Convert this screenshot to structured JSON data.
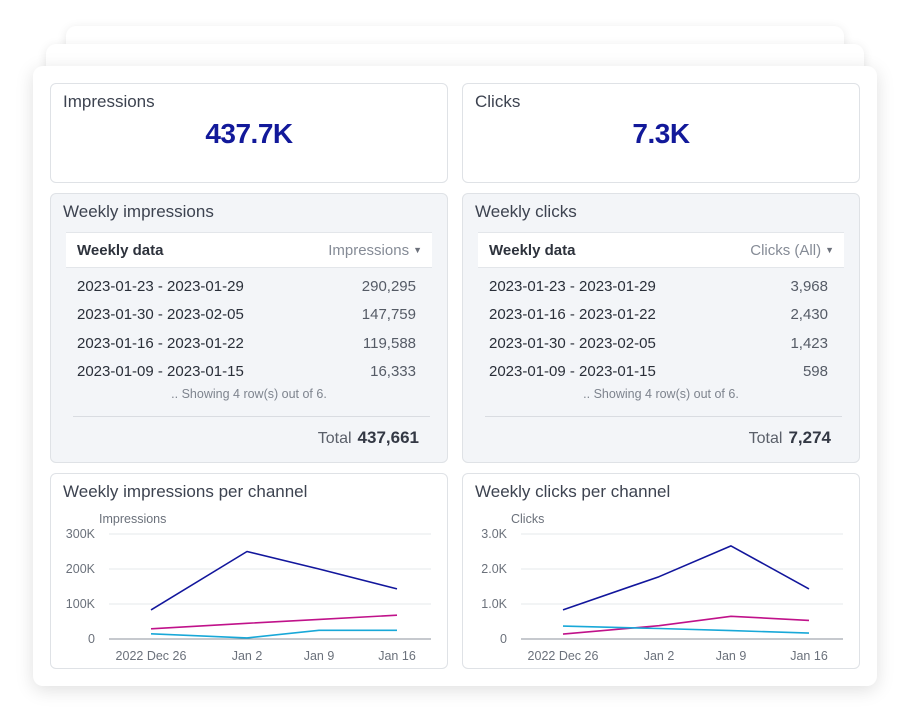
{
  "kpis": {
    "impressions": {
      "label": "Impressions",
      "value": "437.7K"
    },
    "clicks": {
      "label": "Clicks",
      "value": "7.3K"
    }
  },
  "weekly_impressions": {
    "title": "Weekly impressions",
    "col_left": "Weekly data",
    "col_right": "Impressions",
    "rows": [
      {
        "week": "2023-01-23 - 2023-01-29",
        "value": "290,295"
      },
      {
        "week": "2023-01-30 - 2023-02-05",
        "value": "147,759"
      },
      {
        "week": "2023-01-16 - 2023-01-22",
        "value": "119,588"
      },
      {
        "week": "2023-01-09 - 2023-01-15",
        "value": "16,333"
      }
    ],
    "note": ".. Showing 4 row(s) out of 6.",
    "total_label": "Total",
    "total_value": "437,661"
  },
  "weekly_clicks": {
    "title": "Weekly clicks",
    "col_left": "Weekly data",
    "col_right": "Clicks (All)",
    "rows": [
      {
        "week": "2023-01-23 - 2023-01-29",
        "value": "3,968"
      },
      {
        "week": "2023-01-16 - 2023-01-22",
        "value": "2,430"
      },
      {
        "week": "2023-01-30 - 2023-02-05",
        "value": "1,423"
      },
      {
        "week": "2023-01-09 - 2023-01-15",
        "value": "598"
      }
    ],
    "note": ".. Showing 4 row(s) out of 6.",
    "total_label": "Total",
    "total_value": "7,274"
  },
  "colors": {
    "kpi_value": "#12199a",
    "series_navy": "#12169c",
    "series_magenta": "#c0128a",
    "series_cyan": "#18a8d8"
  },
  "chart_data": [
    {
      "type": "line",
      "title": "Weekly impressions per channel",
      "ylabel": "Impressions",
      "xlabel": "",
      "categories": [
        "2022 Dec 26",
        "Jan 2",
        "Jan 9",
        "Jan 16"
      ],
      "y_ticks": [
        0,
        100000,
        200000,
        300000
      ],
      "y_tick_labels": [
        "0",
        "100K",
        "200K",
        "300K"
      ],
      "ylim": [
        0,
        300000
      ],
      "grid": true,
      "legend": "none",
      "series": [
        {
          "color": "#12169c",
          "values": [
            83000,
            250000,
            200000,
            143000
          ]
        },
        {
          "color": "#c0128a",
          "values": [
            29000,
            45000,
            56000,
            68000
          ]
        },
        {
          "color": "#18a8d8",
          "values": [
            15000,
            3000,
            25000,
            25000
          ]
        }
      ]
    },
    {
      "type": "line",
      "title": "Weekly clicks per channel",
      "ylabel": "Clicks",
      "xlabel": "",
      "categories": [
        "2022 Dec 26",
        "Jan 2",
        "Jan 9",
        "Jan 16"
      ],
      "y_ticks": [
        0,
        1000,
        2000,
        3000
      ],
      "y_tick_labels": [
        "0",
        "1.0K",
        "2.0K",
        "3.0K"
      ],
      "ylim": [
        0,
        3000
      ],
      "grid": true,
      "legend": "none",
      "series": [
        {
          "color": "#12169c",
          "values": [
            830,
            1780,
            2660,
            1430
          ]
        },
        {
          "color": "#c0128a",
          "values": [
            140,
            380,
            650,
            530
          ]
        },
        {
          "color": "#18a8d8",
          "values": [
            370,
            300,
            240,
            170
          ]
        }
      ]
    }
  ]
}
